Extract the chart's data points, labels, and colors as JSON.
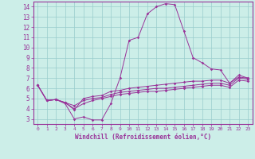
{
  "xlabel": "Windchill (Refroidissement éolien,°C)",
  "bg_color": "#cceee8",
  "line_color": "#993399",
  "grid_color": "#99cccc",
  "ylim": [
    2.5,
    14.5
  ],
  "xlim": [
    -0.5,
    23.5
  ],
  "yticks": [
    3,
    4,
    5,
    6,
    7,
    8,
    9,
    10,
    11,
    12,
    13,
    14
  ],
  "xticks": [
    0,
    1,
    2,
    3,
    4,
    5,
    6,
    7,
    8,
    9,
    10,
    11,
    12,
    13,
    14,
    15,
    16,
    17,
    18,
    19,
    20,
    21,
    22,
    23
  ],
  "line1": [
    6.3,
    4.8,
    4.9,
    4.5,
    3.0,
    3.2,
    2.9,
    2.9,
    4.5,
    7.0,
    10.7,
    11.0,
    13.3,
    14.0,
    14.3,
    14.2,
    11.6,
    9.0,
    8.5,
    7.9,
    7.8,
    6.5,
    7.3,
    7.0
  ],
  "line2": [
    6.3,
    4.8,
    4.9,
    4.6,
    3.9,
    5.0,
    5.2,
    5.3,
    5.7,
    5.8,
    6.0,
    6.1,
    6.2,
    6.3,
    6.4,
    6.5,
    6.6,
    6.7,
    6.7,
    6.8,
    6.8,
    6.5,
    7.1,
    7.0
  ],
  "line3": [
    6.3,
    4.8,
    4.9,
    4.6,
    4.3,
    4.8,
    5.0,
    5.1,
    5.4,
    5.6,
    5.7,
    5.8,
    5.9,
    6.0,
    6.0,
    6.1,
    6.2,
    6.3,
    6.4,
    6.5,
    6.5,
    6.3,
    7.0,
    6.9
  ],
  "line4": [
    6.3,
    4.8,
    4.9,
    4.6,
    4.0,
    4.5,
    4.8,
    5.0,
    5.2,
    5.4,
    5.5,
    5.6,
    5.7,
    5.7,
    5.8,
    5.9,
    6.0,
    6.1,
    6.2,
    6.3,
    6.3,
    6.1,
    6.8,
    6.7
  ]
}
